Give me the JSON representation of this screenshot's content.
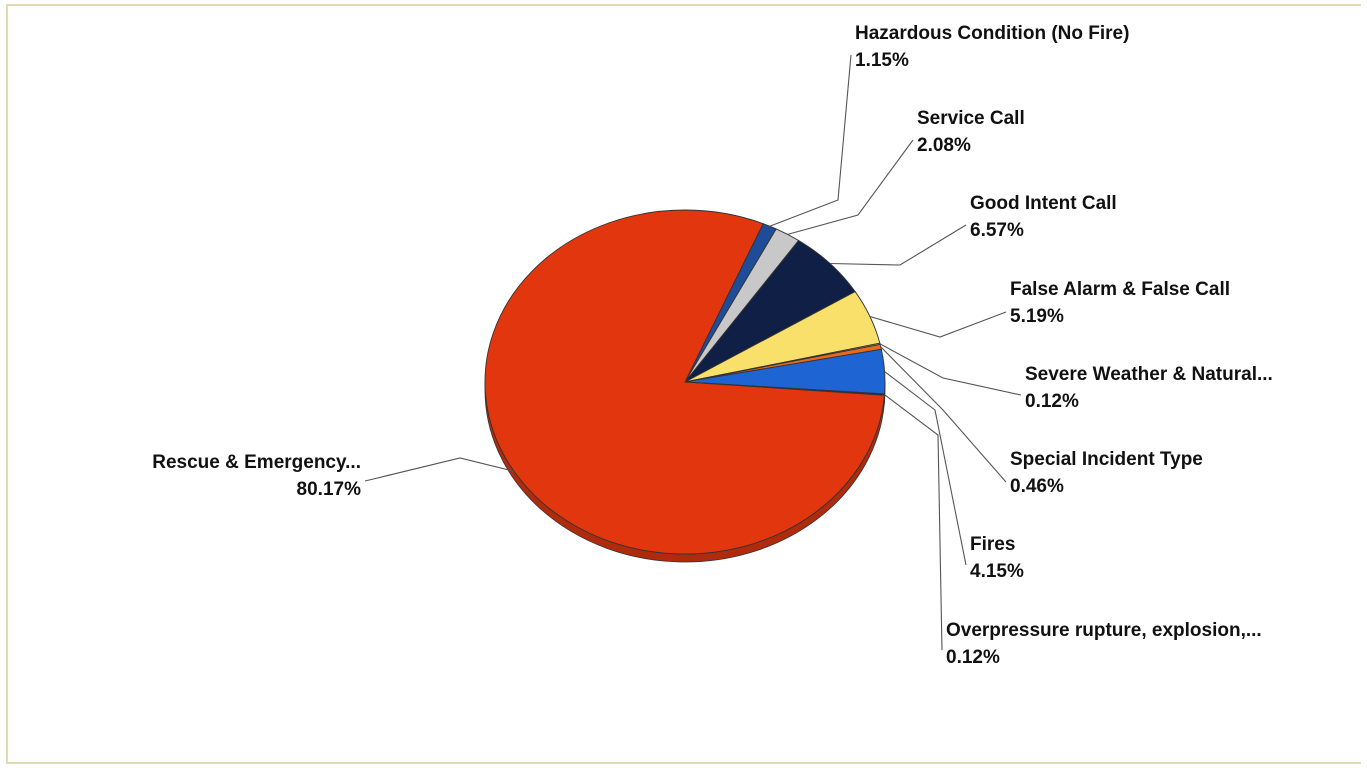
{
  "chart_data": {
    "type": "pie",
    "title": "",
    "slices": [
      {
        "label": "Hazardous Condition (No Fire)",
        "value": 1.15,
        "value_label": "1.15%",
        "color": "#1f4c99"
      },
      {
        "label": "Service Call",
        "value": 2.08,
        "value_label": "2.08%",
        "color": "#c8c8c8"
      },
      {
        "label": "Good Intent Call",
        "value": 6.57,
        "value_label": "6.57%",
        "color": "#0f1f45"
      },
      {
        "label": "False Alarm & False Call",
        "value": 5.19,
        "value_label": "5.19%",
        "color": "#f9e06a"
      },
      {
        "label": "Severe Weather & Natural...",
        "value": 0.12,
        "value_label": "0.12%",
        "color": "#d9b86a"
      },
      {
        "label": "Special Incident Type",
        "value": 0.46,
        "value_label": "0.46%",
        "color": "#e86a1f"
      },
      {
        "label": "Fires",
        "value": 4.15,
        "value_label": "4.15%",
        "color": "#1e64d2"
      },
      {
        "label": "Overpressure rupture, explosion,...",
        "value": 0.12,
        "value_label": "0.12%",
        "color": "#2a2a2a"
      },
      {
        "label": "Rescue & Emergency...",
        "value": 80.17,
        "value_label": "80.17%",
        "color": "#e2360f"
      }
    ],
    "legend": "none",
    "label_style": "callout-lines"
  }
}
